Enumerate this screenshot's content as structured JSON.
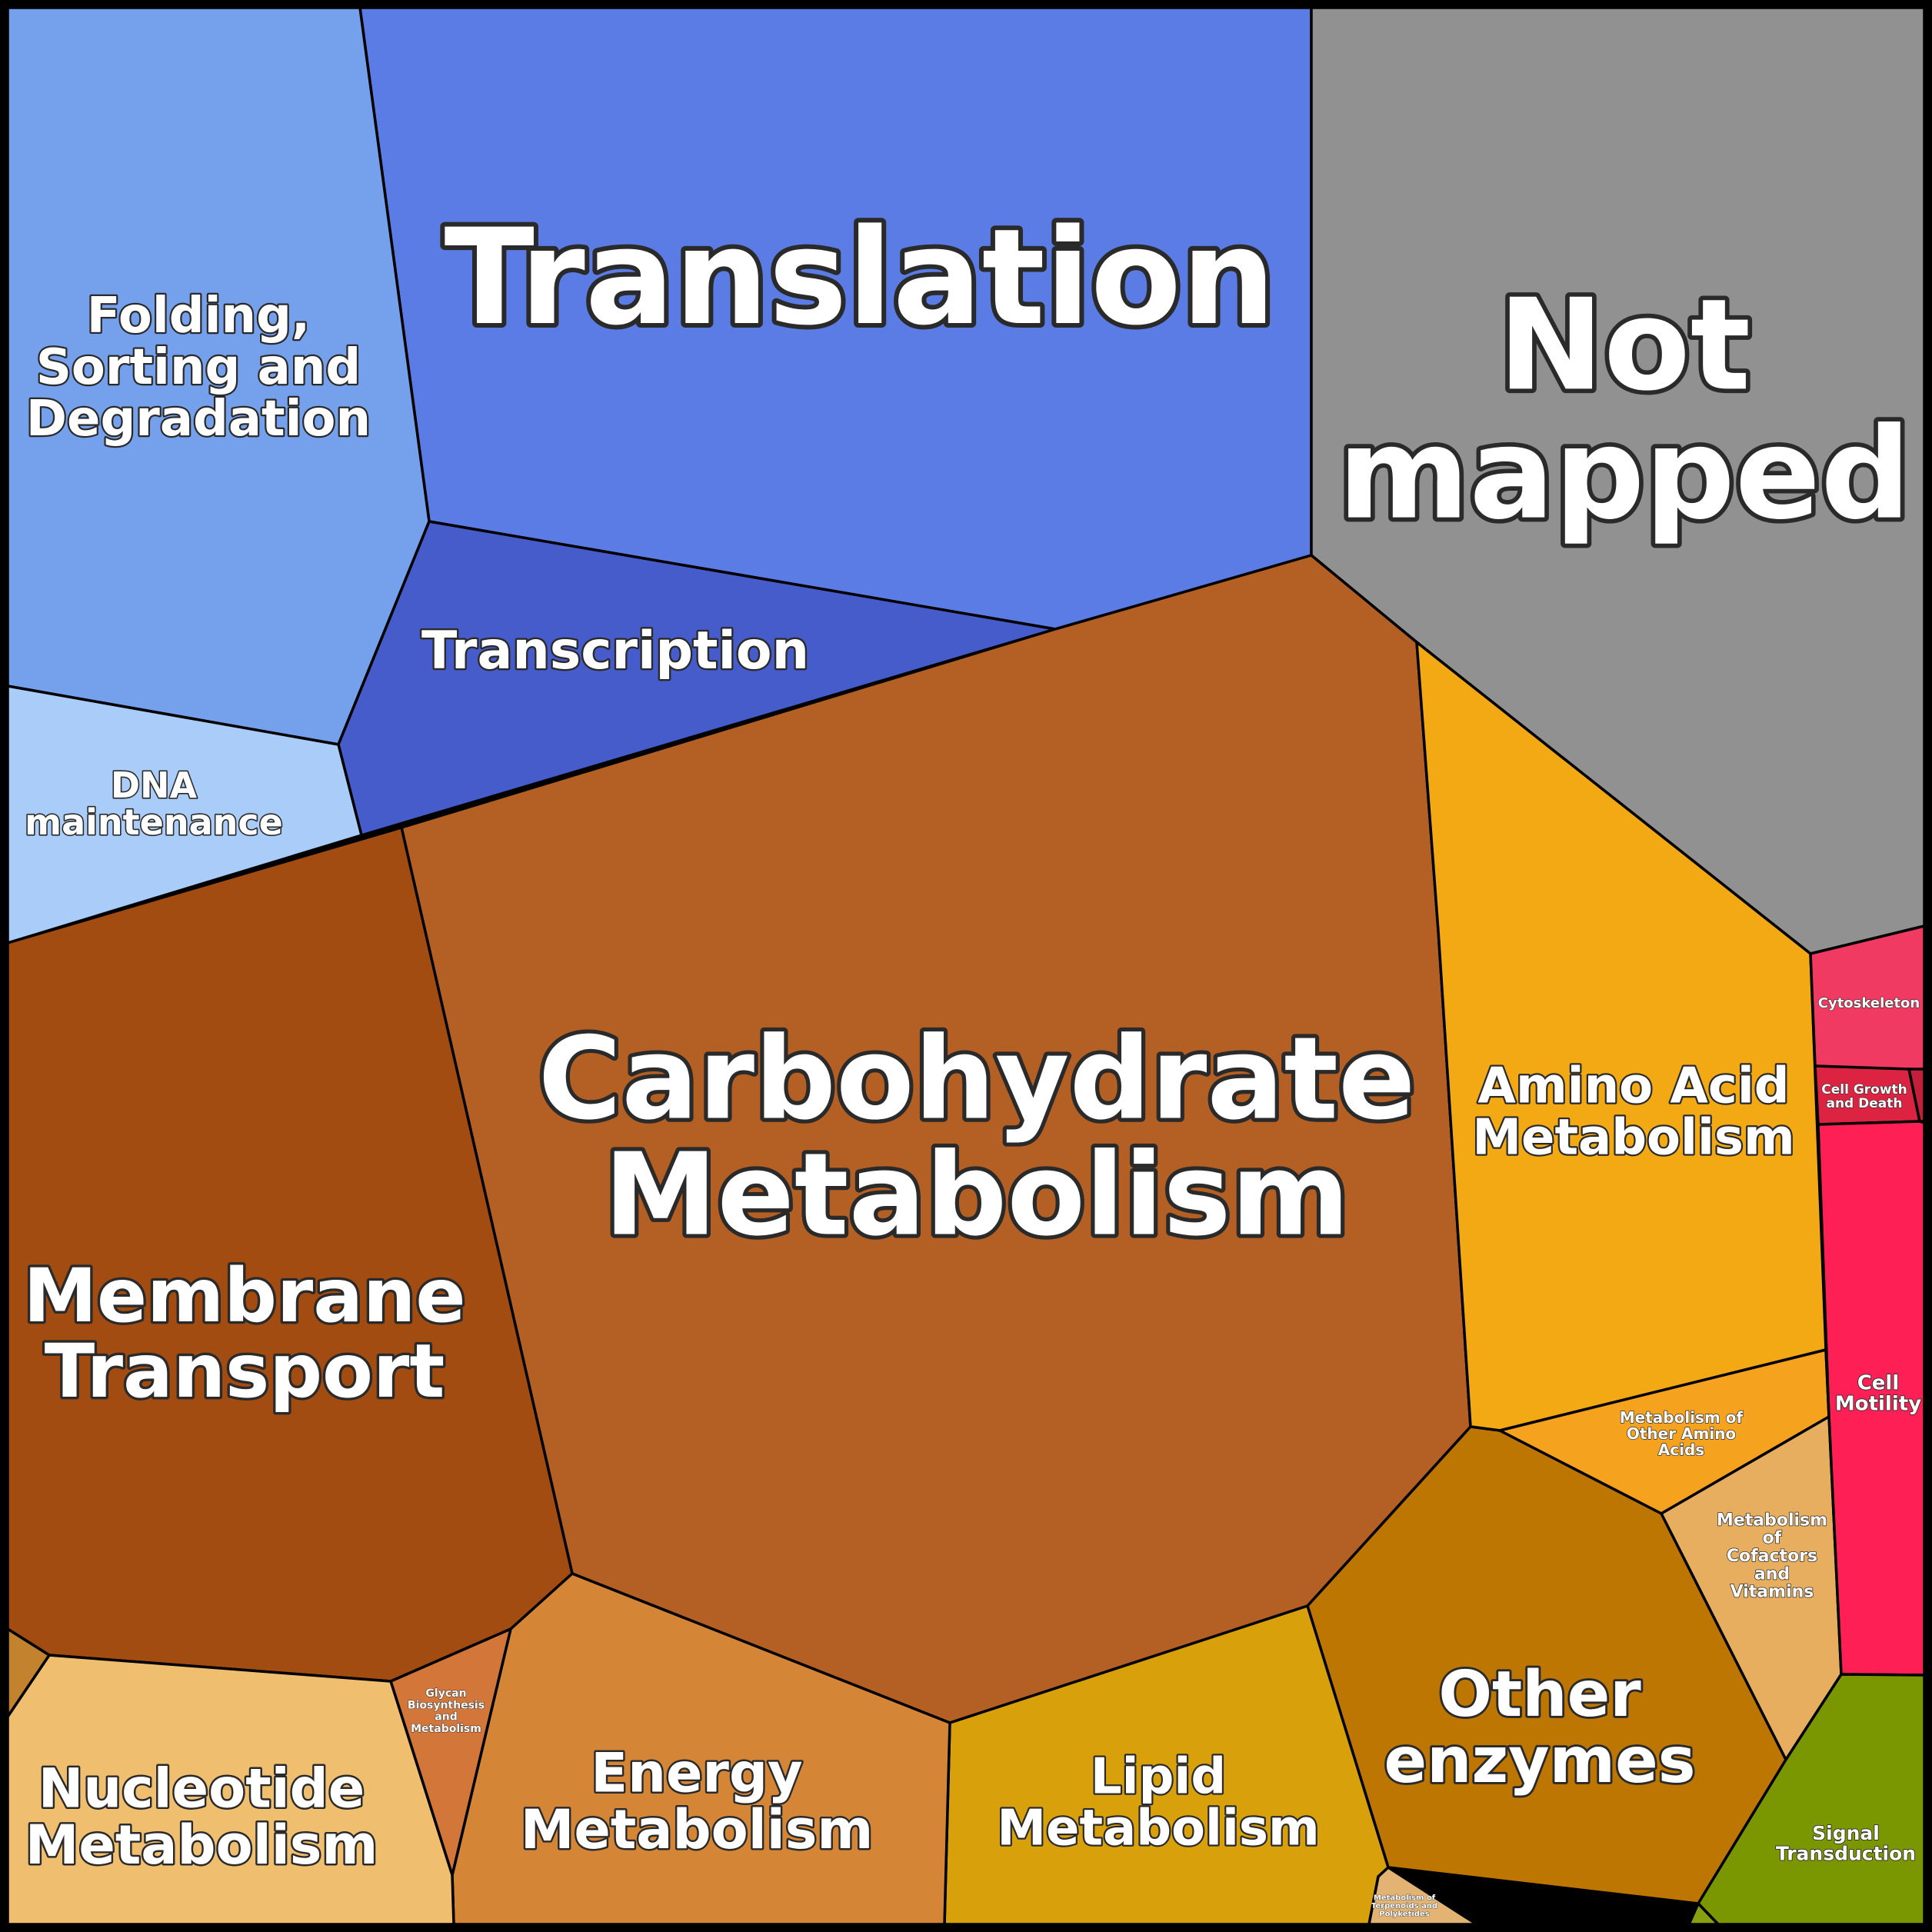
{
  "chart_data": {
    "type": "voronoi-treemap",
    "title": "",
    "cells": [
      {
        "id": "translation",
        "label": "Translation",
        "color": "#5B7CE4"
      },
      {
        "id": "not-mapped",
        "label": "Not mapped",
        "color": "#929191"
      },
      {
        "id": "folding",
        "label": "Folding, Sorting and Degradation",
        "color": "#74A0EC"
      },
      {
        "id": "transcription",
        "label": "Transcription",
        "color": "#465CCA"
      },
      {
        "id": "dna-maintenance",
        "label": "DNA maintenance",
        "color": "#A9CCF8"
      },
      {
        "id": "carbohydrate-metabolism",
        "label": "Carbohydrate Metabolism",
        "color": "#B46024"
      },
      {
        "id": "membrane-transport",
        "label": "Membrane Transport",
        "color": "#A34C11"
      },
      {
        "id": "amino-acid-metabolism",
        "label": "Amino Acid Metabolism",
        "color": "#F2A913"
      },
      {
        "id": "metabolism-other-amino-acids",
        "label": "Metabolism of Other Amino Acids",
        "color": "#F5A21E"
      },
      {
        "id": "metabolism-cofactors-vitamins",
        "label": "Metabolism of Cofactors and Vitamins",
        "color": "#E8AE5F"
      },
      {
        "id": "other-enzymes",
        "label": "Other enzymes",
        "color": "#BE7602"
      },
      {
        "id": "lipid-metabolism",
        "label": "Lipid Metabolism",
        "color": "#D8A00A"
      },
      {
        "id": "energy-metabolism",
        "label": "Energy Metabolism",
        "color": "#D48636"
      },
      {
        "id": "glycan-biosynthesis",
        "label": "Glycan Biosynthesis and Metabolism",
        "color": "#D2763A"
      },
      {
        "id": "nucleotide-metabolism",
        "label": "Nucleotide Metabolism",
        "color": "#EFBE6E"
      },
      {
        "id": "xenobiotics",
        "label": "",
        "color": "#C2822E"
      },
      {
        "id": "terpenoids-polyketides",
        "label": "Metabolism of Terpenoids and Polyketides",
        "color": "#E3B374"
      },
      {
        "id": "cytoskeleton",
        "label": "Cytoskeleton",
        "color": "#F03A62"
      },
      {
        "id": "cell-growth-death",
        "label": "Cell Growth and Death",
        "color": "#DC2442"
      },
      {
        "id": "cell-small",
        "label": "",
        "color": "#C21F3A"
      },
      {
        "id": "cell-motility",
        "label": "Cell Motility",
        "color": "#FE1F55"
      },
      {
        "id": "signal-transduction",
        "label": "Signal Transduction",
        "color": "#7A9702"
      },
      {
        "id": "signal-small",
        "label": "",
        "color": "#86A010"
      }
    ]
  }
}
